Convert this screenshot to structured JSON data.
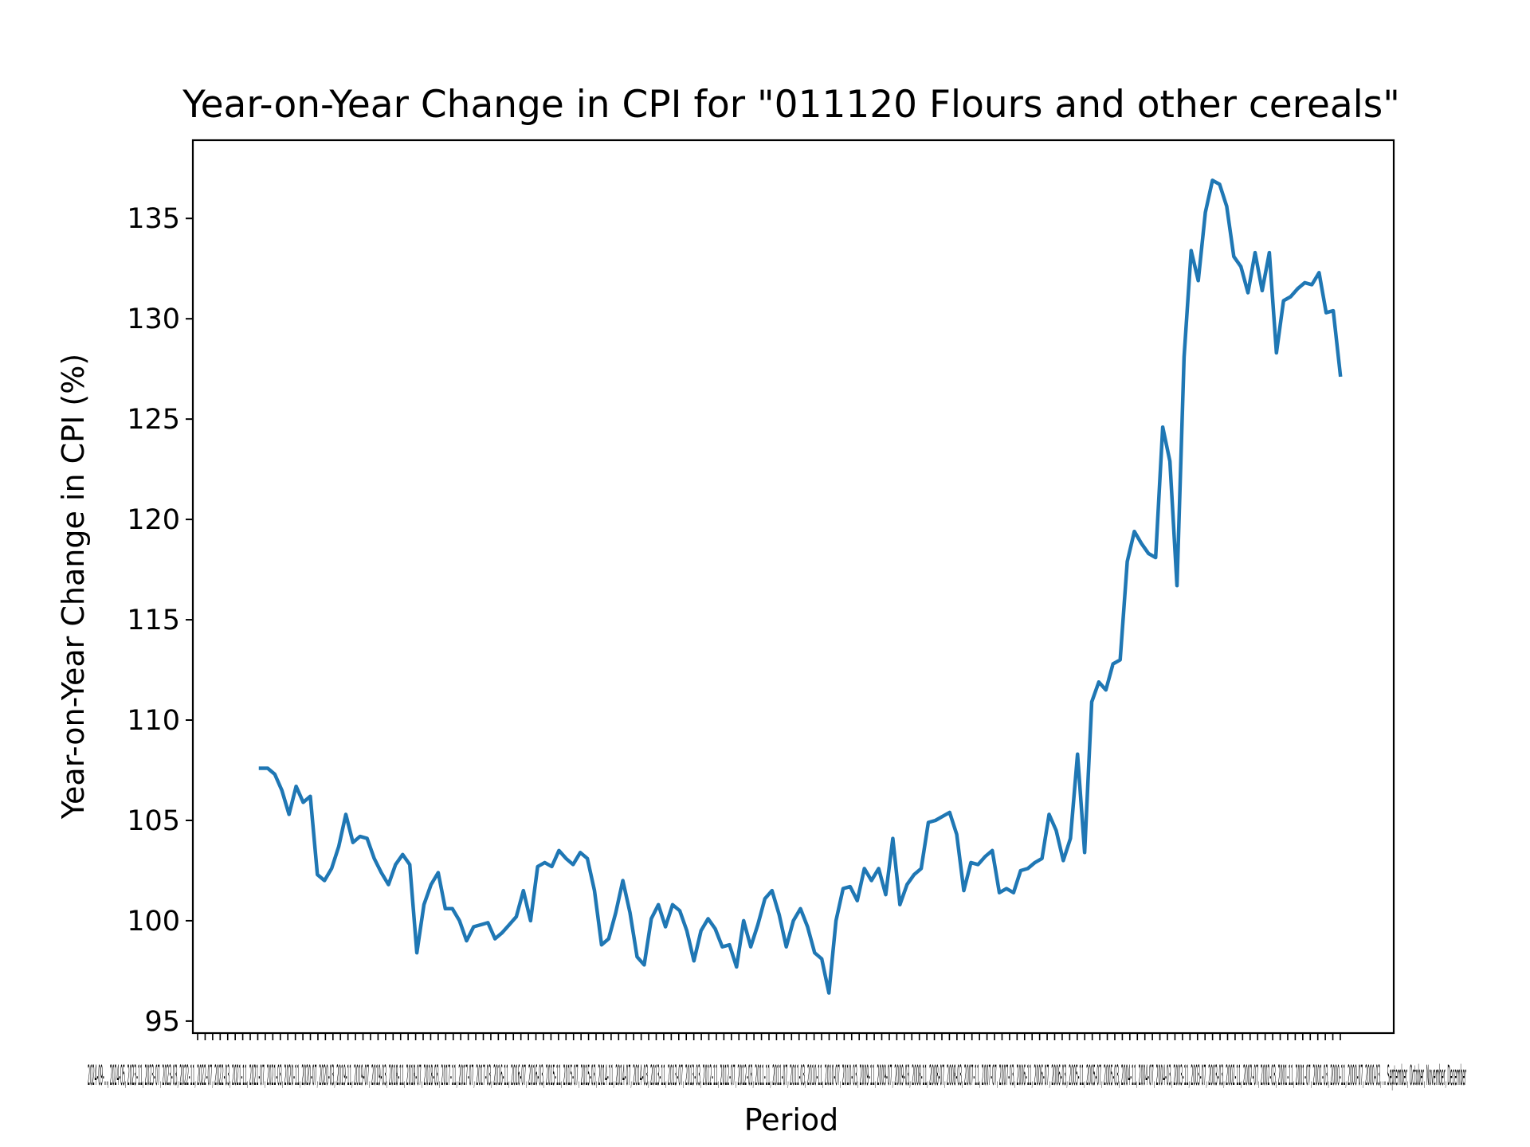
{
  "chart_data": {
    "type": "line",
    "title": "Year-on-Year Change in CPI for \"011120 Flours and other cereals\"",
    "xlabel": "Period",
    "ylabel": "Year-on-Year Change in CPI (%)",
    "ylim": [
      94.4,
      138.9
    ],
    "yticks": [
      95,
      100,
      105,
      110,
      115,
      120,
      125,
      130,
      135
    ],
    "grid": false,
    "legend": "none",
    "line_color": "#1f77b4",
    "series": [
      {
        "values": [
          107.6,
          107.6,
          107.3,
          106.5,
          105.3,
          106.7,
          105.9,
          106.2,
          102.3,
          102.0,
          102.6,
          103.7,
          105.3,
          103.9,
          104.2,
          104.1,
          103.1,
          102.4,
          101.8,
          102.8,
          103.3,
          102.8,
          98.4,
          100.8,
          101.8,
          102.4,
          100.6,
          100.6,
          100.0,
          99.0,
          99.7,
          99.8,
          99.9,
          99.1,
          99.4,
          99.8,
          100.2,
          101.5,
          100.0,
          102.7,
          102.9,
          102.7,
          103.5,
          103.1,
          102.8,
          103.4,
          103.1,
          101.5,
          98.8,
          99.1,
          100.4,
          102.0,
          100.4,
          98.2,
          97.8,
          100.1,
          100.8,
          99.7,
          100.8,
          100.5,
          99.5,
          98.0,
          99.5,
          100.1,
          99.6,
          98.7,
          98.8,
          97.7,
          100.0,
          98.7,
          99.8,
          101.1,
          101.5,
          100.3,
          98.7,
          100.0,
          100.6,
          99.7,
          98.4,
          98.1,
          96.4,
          100.0,
          101.6,
          101.7,
          101.0,
          102.6,
          102.0,
          102.6,
          101.3,
          104.1,
          100.8,
          101.8,
          102.3,
          102.6,
          104.9,
          105.0,
          105.2,
          105.4,
          104.3,
          101.5,
          102.9,
          102.8,
          103.2,
          103.5,
          101.4,
          101.6,
          101.4,
          102.5,
          102.6,
          102.9,
          103.1,
          105.3,
          104.5,
          103.0,
          104.1,
          108.3,
          103.4,
          110.9,
          111.9,
          111.5,
          112.8,
          113.0,
          117.9,
          119.4,
          118.8,
          118.3,
          118.1,
          124.6,
          122.9,
          116.7,
          128.1,
          133.4,
          131.9,
          135.3,
          136.9,
          136.7,
          135.6,
          133.1,
          132.6,
          131.3,
          133.3,
          131.4,
          133.3,
          128.3,
          130.9,
          131.1,
          131.5,
          131.8,
          131.7,
          132.3,
          130.3,
          130.4,
          127.2
        ]
      }
    ],
    "x_tick_text": "2024-09-..., 2024-05, 2023-11, 2023-07, 2023-03, 2022-11, 2022-07, 2022-03, 2021-11, 2021-07, 2021-03, 2020-11, 2020-07, 2020-03, 2019-11, 2019-07, 2019-03, 2018-11, 2018-07, 2018-03, 2017-11, 2017-07, 2017-03, 2016-11, 2016-07, 2016-03, 2015-11, 2015-07, 2015-03, 2014-11, 2014-07, 2014-03, 2013-11, 2013-07, 2013-03, 2012-11, 2012-07, 2012-03, 2011-11, 2011-07, 2011-03, 2010-11, 2010-07, 2010-03, 2009-11, 2009-07, 2009-03, 2008-11, 2008-07, 2008-03, 2007-11, 2007-07, 2007-03, 2006-11, 2006-07, 2006-03, 2005-11, 2005-07, 2005-03, 2004-11, 2004-07, 2004-03, 2003-11, 2003-07, 2003-03, 2002-11, 2002-07, 2002-03, 2001-11, 2001-07, 2001-03, 2000-11, 2000-07, 2000-03, ... September, October, November, December"
  }
}
